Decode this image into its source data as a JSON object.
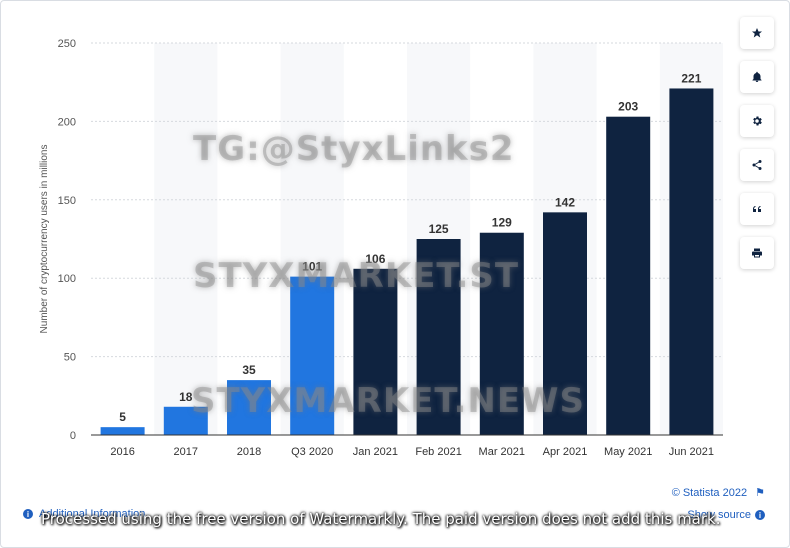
{
  "chart_data": {
    "type": "bar",
    "categories": [
      "2016",
      "2017",
      "2018",
      "Q3 2020",
      "Jan 2021",
      "Feb 2021",
      "Mar 2021",
      "Apr 2021",
      "May 2021",
      "Jun 2021"
    ],
    "values": [
      5,
      18,
      35,
      101,
      106,
      125,
      129,
      142,
      203,
      221
    ],
    "bar_colors": [
      "#2176e0",
      "#2176e0",
      "#2176e0",
      "#2176e0",
      "#0f2340",
      "#0f2340",
      "#0f2340",
      "#0f2340",
      "#0f2340",
      "#0f2340"
    ],
    "ylabel": "Number of cryptocurrency users in millions",
    "ylim": [
      0,
      250
    ],
    "yticks": [
      0,
      50,
      100,
      150,
      200,
      250
    ],
    "grid": true,
    "data_labels": true
  },
  "toolbar": {
    "icons": [
      "star-icon",
      "bell-icon",
      "gear-icon",
      "share-icon",
      "quote-icon",
      "print-icon"
    ]
  },
  "footer": {
    "additional_info": "Additional Information",
    "copyright": "© Statista 2022",
    "show_source": "Show source"
  },
  "watermarks": {
    "tg": "TG:@StyxLinks2",
    "market_st": "STYXMARKET.ST",
    "market_news": "STYXMARKET.NEWS",
    "processed": "Processed using the free version of Watermarkly. The paid version does not add this mark."
  }
}
